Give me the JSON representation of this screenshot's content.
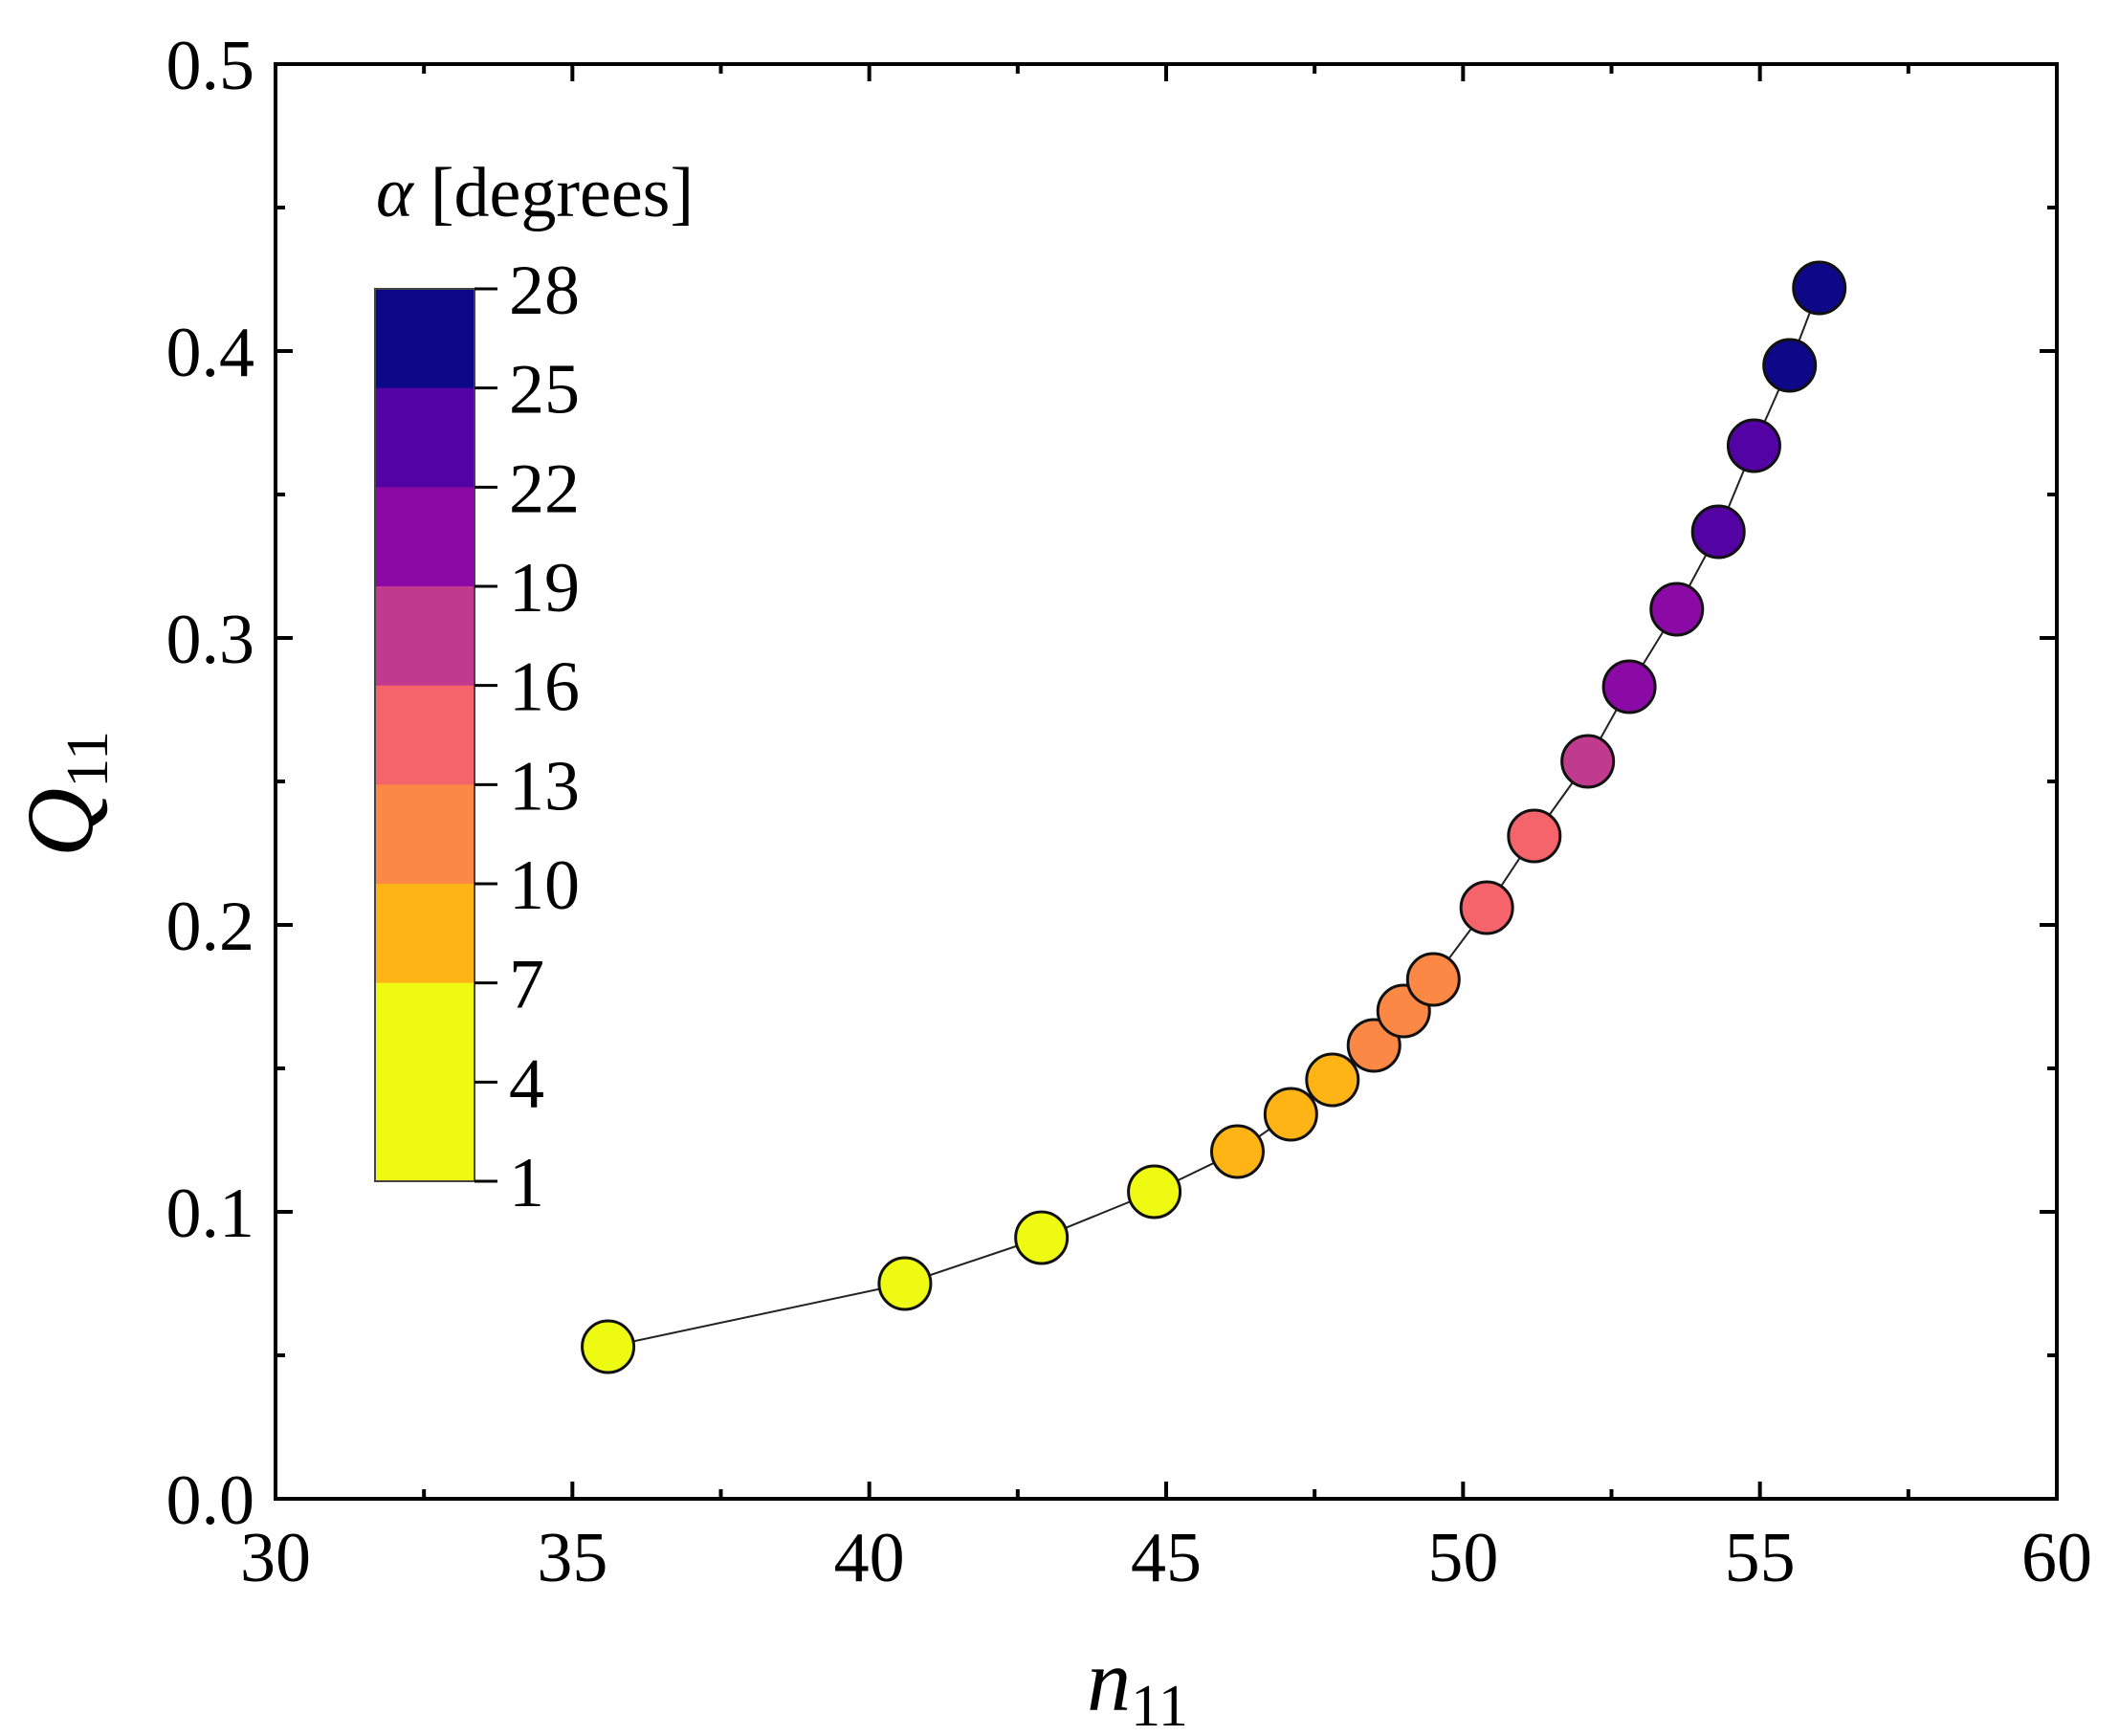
{
  "chart_data": {
    "type": "scatter",
    "xlabel": "n",
    "xlabel_subscript": "11",
    "ylabel": "Q",
    "ylabel_subscript": "11",
    "xlim": [
      30,
      60
    ],
    "ylim": [
      0.0,
      0.5
    ],
    "x_ticks": [
      30,
      35,
      40,
      45,
      50,
      55,
      60
    ],
    "y_ticks": [
      0.0,
      0.1,
      0.2,
      0.3,
      0.4,
      0.5
    ],
    "x_tick_labels": [
      "30",
      "35",
      "40",
      "45",
      "50",
      "55",
      "60"
    ],
    "y_tick_labels": [
      "0.0",
      "0.1",
      "0.2",
      "0.3",
      "0.4",
      "0.5"
    ],
    "connecting_line": true,
    "colorbar": {
      "title_symbol": "α",
      "title_text": "[degrees]",
      "tick_labels": [
        "28",
        "25",
        "22",
        "19",
        "16",
        "13",
        "10",
        "7",
        "4",
        "1"
      ],
      "bands": [
        {
          "from": 25,
          "to": 28,
          "color": "#0d0887"
        },
        {
          "from": 22,
          "to": 25,
          "color": "#5302a3"
        },
        {
          "from": 19,
          "to": 22,
          "color": "#8b0aa5"
        },
        {
          "from": 16,
          "to": 19,
          "color": "#c03a8e"
        },
        {
          "from": 13,
          "to": 16,
          "color": "#f5636b"
        },
        {
          "from": 10,
          "to": 13,
          "color": "#fb8844"
        },
        {
          "from": 7,
          "to": 10,
          "color": "#feb415"
        },
        {
          "from": 1,
          "to": 7,
          "color": "#eefa11"
        }
      ]
    },
    "points": [
      {
        "n11": 35.6,
        "Q11": 0.053,
        "color": "#eefa11"
      },
      {
        "n11": 40.6,
        "Q11": 0.075,
        "color": "#eefa11"
      },
      {
        "n11": 42.9,
        "Q11": 0.091,
        "color": "#eefa11"
      },
      {
        "n11": 44.8,
        "Q11": 0.107,
        "color": "#eefa11"
      },
      {
        "n11": 46.2,
        "Q11": 0.121,
        "color": "#feb415"
      },
      {
        "n11": 47.1,
        "Q11": 0.134,
        "color": "#feb415"
      },
      {
        "n11": 47.8,
        "Q11": 0.146,
        "color": "#feb415"
      },
      {
        "n11": 48.5,
        "Q11": 0.158,
        "color": "#fb8844"
      },
      {
        "n11": 49.0,
        "Q11": 0.17,
        "color": "#fb8844"
      },
      {
        "n11": 49.5,
        "Q11": 0.181,
        "color": "#fb8844"
      },
      {
        "n11": 50.4,
        "Q11": 0.206,
        "color": "#f5636b"
      },
      {
        "n11": 51.2,
        "Q11": 0.231,
        "color": "#f5636b"
      },
      {
        "n11": 52.1,
        "Q11": 0.257,
        "color": "#c03a8e"
      },
      {
        "n11": 52.8,
        "Q11": 0.283,
        "color": "#8b0aa5"
      },
      {
        "n11": 53.6,
        "Q11": 0.31,
        "color": "#8b0aa5"
      },
      {
        "n11": 54.3,
        "Q11": 0.337,
        "color": "#5302a3"
      },
      {
        "n11": 54.9,
        "Q11": 0.367,
        "color": "#5302a3"
      },
      {
        "n11": 55.5,
        "Q11": 0.395,
        "color": "#0d0887"
      },
      {
        "n11": 56.0,
        "Q11": 0.422,
        "color": "#0d0887"
      }
    ]
  }
}
